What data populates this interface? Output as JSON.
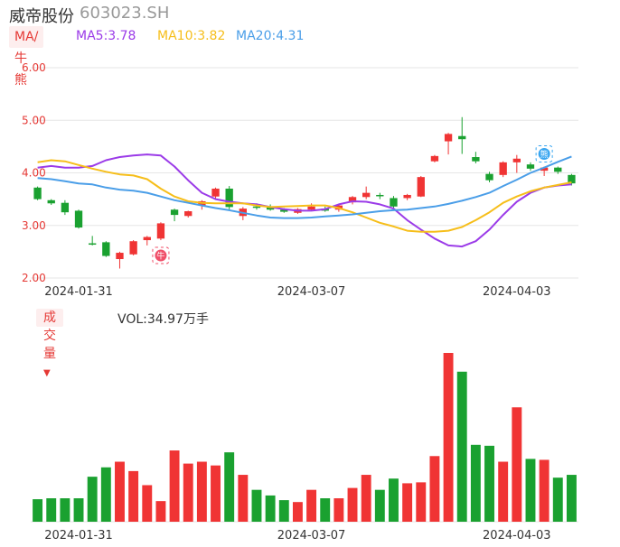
{
  "header": {
    "name": "威帝股份",
    "code": "603023.SH"
  },
  "ma_bar": {
    "mode": "MA/牛熊",
    "ma5": "MA5:3.78",
    "ma10": "MA10:3.82",
    "ma20": "MA20:4.31"
  },
  "volume_bar": {
    "mode": "成交量",
    "label": "VOL:34.97万手"
  },
  "colors": {
    "up": "#f03434",
    "down": "#1aa130",
    "ma5": "#9b3be8",
    "ma10": "#f6be1a",
    "ma20": "#4a9ee8"
  },
  "chart_data": [
    {
      "type": "candlestick",
      "y_ticks": [
        "6.00",
        "5.00",
        "4.00",
        "3.00",
        "2.00"
      ],
      "ylim": [
        2.0,
        6.0
      ],
      "x_ticks": [
        {
          "label": "2024-01-31",
          "index": 3
        },
        {
          "label": "2024-03-07",
          "index": 20
        },
        {
          "label": "2024-04-03",
          "index": 35
        }
      ],
      "candles": [
        {
          "o": 3.72,
          "h": 3.74,
          "l": 3.48,
          "c": 3.5
        },
        {
          "o": 3.48,
          "h": 3.5,
          "l": 3.39,
          "c": 3.42
        },
        {
          "o": 3.43,
          "h": 3.48,
          "l": 3.2,
          "c": 3.25
        },
        {
          "o": 3.28,
          "h": 3.3,
          "l": 2.94,
          "c": 2.96
        },
        {
          "o": 2.66,
          "h": 2.8,
          "l": 2.62,
          "c": 2.65
        },
        {
          "o": 2.68,
          "h": 2.7,
          "l": 2.4,
          "c": 2.42
        },
        {
          "o": 2.36,
          "h": 2.5,
          "l": 2.18,
          "c": 2.48
        },
        {
          "o": 2.45,
          "h": 2.72,
          "l": 2.43,
          "c": 2.7
        },
        {
          "o": 2.72,
          "h": 2.8,
          "l": 2.62,
          "c": 2.78
        },
        {
          "o": 2.75,
          "h": 3.06,
          "l": 2.72,
          "c": 3.04
        },
        {
          "o": 3.3,
          "h": 3.32,
          "l": 3.08,
          "c": 3.2
        },
        {
          "o": 3.18,
          "h": 3.28,
          "l": 3.15,
          "c": 3.27
        },
        {
          "o": 3.38,
          "h": 3.48,
          "l": 3.3,
          "c": 3.46
        },
        {
          "o": 3.55,
          "h": 3.72,
          "l": 3.5,
          "c": 3.7
        },
        {
          "o": 3.7,
          "h": 3.75,
          "l": 3.3,
          "c": 3.35
        },
        {
          "o": 3.18,
          "h": 3.35,
          "l": 3.1,
          "c": 3.32
        },
        {
          "o": 3.36,
          "h": 3.42,
          "l": 3.3,
          "c": 3.35
        },
        {
          "o": 3.35,
          "h": 3.4,
          "l": 3.28,
          "c": 3.3
        },
        {
          "o": 3.3,
          "h": 3.33,
          "l": 3.24,
          "c": 3.26
        },
        {
          "o": 3.24,
          "h": 3.33,
          "l": 3.22,
          "c": 3.31
        },
        {
          "o": 3.3,
          "h": 3.42,
          "l": 3.28,
          "c": 3.36
        },
        {
          "o": 3.32,
          "h": 3.36,
          "l": 3.26,
          "c": 3.28
        },
        {
          "o": 3.3,
          "h": 3.4,
          "l": 3.26,
          "c": 3.38
        },
        {
          "o": 3.44,
          "h": 3.56,
          "l": 3.4,
          "c": 3.54
        },
        {
          "o": 3.54,
          "h": 3.74,
          "l": 3.5,
          "c": 3.62
        },
        {
          "o": 3.58,
          "h": 3.62,
          "l": 3.5,
          "c": 3.57
        },
        {
          "o": 3.52,
          "h": 3.56,
          "l": 3.32,
          "c": 3.36
        },
        {
          "o": 3.52,
          "h": 3.6,
          "l": 3.48,
          "c": 3.58
        },
        {
          "o": 3.55,
          "h": 3.94,
          "l": 3.54,
          "c": 3.92
        },
        {
          "o": 4.22,
          "h": 4.34,
          "l": 4.2,
          "c": 4.32
        },
        {
          "o": 4.6,
          "h": 4.76,
          "l": 4.35,
          "c": 4.74
        },
        {
          "o": 4.7,
          "h": 5.06,
          "l": 4.36,
          "c": 4.64
        },
        {
          "o": 4.3,
          "h": 4.4,
          "l": 4.18,
          "c": 4.22
        },
        {
          "o": 3.98,
          "h": 4.02,
          "l": 3.82,
          "c": 3.86
        },
        {
          "o": 3.96,
          "h": 4.22,
          "l": 3.92,
          "c": 4.2
        },
        {
          "o": 4.2,
          "h": 4.34,
          "l": 4.0,
          "c": 4.27
        },
        {
          "o": 4.16,
          "h": 4.2,
          "l": 4.04,
          "c": 4.08
        },
        {
          "o": 4.04,
          "h": 4.12,
          "l": 3.94,
          "c": 4.1
        },
        {
          "o": 4.1,
          "h": 4.12,
          "l": 3.98,
          "c": 4.02
        },
        {
          "o": 3.96,
          "h": 3.98,
          "l": 3.76,
          "c": 3.8
        }
      ],
      "series": [
        {
          "name": "MA5",
          "values": [
            4.1,
            4.13,
            4.1,
            4.1,
            4.13,
            4.24,
            4.3,
            4.33,
            4.35,
            4.33,
            4.12,
            3.86,
            3.62,
            3.5,
            3.45,
            3.42,
            3.4,
            3.35,
            3.31,
            3.28,
            3.28,
            3.31,
            3.4,
            3.46,
            3.45,
            3.4,
            3.32,
            3.1,
            2.92,
            2.75,
            2.62,
            2.6,
            2.7,
            2.92,
            3.2,
            3.45,
            3.62,
            3.72,
            3.76,
            3.78
          ]
        },
        {
          "name": "MA10",
          "values": [
            4.2,
            4.24,
            4.22,
            4.15,
            4.08,
            4.02,
            3.97,
            3.95,
            3.88,
            3.7,
            3.55,
            3.46,
            3.43,
            3.42,
            3.42,
            3.42,
            3.38,
            3.35,
            3.36,
            3.37,
            3.38,
            3.38,
            3.33,
            3.25,
            3.15,
            3.05,
            2.98,
            2.9,
            2.88,
            2.88,
            2.9,
            2.97,
            3.1,
            3.25,
            3.43,
            3.55,
            3.65,
            3.72,
            3.77,
            3.82
          ]
        },
        {
          "name": "MA20",
          "values": [
            3.9,
            3.88,
            3.84,
            3.8,
            3.78,
            3.72,
            3.68,
            3.66,
            3.62,
            3.55,
            3.48,
            3.43,
            3.38,
            3.33,
            3.29,
            3.24,
            3.19,
            3.15,
            3.14,
            3.14,
            3.15,
            3.17,
            3.19,
            3.21,
            3.24,
            3.27,
            3.29,
            3.3,
            3.33,
            3.36,
            3.41,
            3.47,
            3.54,
            3.62,
            3.75,
            3.87,
            4.0,
            4.1,
            4.21,
            4.31
          ]
        }
      ],
      "markers": [
        {
          "index": 9,
          "kind": "bull",
          "glyph": "牛"
        },
        {
          "index": 37,
          "kind": "bear",
          "glyph": "熊"
        }
      ]
    },
    {
      "type": "bar",
      "name": "VOL",
      "values": [
        12,
        12.5,
        12.5,
        12.5,
        24,
        29,
        32,
        27,
        19.5,
        11,
        38,
        31,
        32,
        30,
        37,
        25,
        17,
        14,
        11.5,
        10.5,
        17,
        12.5,
        12.5,
        18,
        25,
        17,
        23,
        20.5,
        21,
        35,
        90,
        80,
        41,
        40.5,
        32,
        61,
        33.5,
        33,
        23.5,
        25
      ],
      "directions": [
        "down",
        "down",
        "down",
        "down",
        "down",
        "down",
        "up",
        "up",
        "up",
        "up",
        "up",
        "up",
        "up",
        "up",
        "down",
        "up",
        "down",
        "down",
        "down",
        "up",
        "up",
        "down",
        "up",
        "up",
        "up",
        "down",
        "down",
        "up",
        "up",
        "up",
        "up",
        "down",
        "down",
        "down",
        "up",
        "up",
        "down",
        "up",
        "down",
        "down"
      ],
      "ylim": [
        0,
        90
      ],
      "x_ticks": [
        "2024-01-31",
        "2024-03-07",
        "2024-04-03"
      ]
    }
  ]
}
